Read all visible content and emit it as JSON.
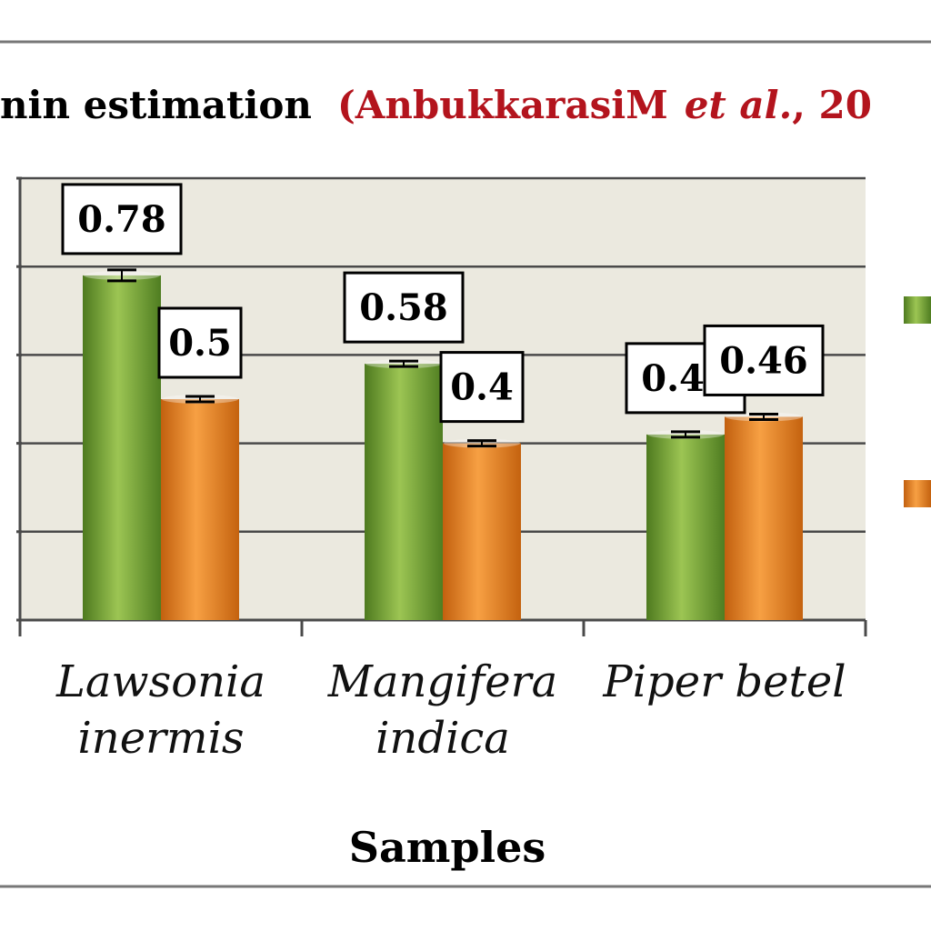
{
  "title_black": "nin estimation",
  "title_red_part1": "(AnbukkarasiM",
  "title_red_italic": "et al.",
  "title_red_part2": ", 20",
  "colors": {
    "green": "#7aa63a",
    "orange": "#e8821e",
    "plot_bg": "#ebe9df",
    "grid": "#4a4a4a",
    "title_red": "#b3141d"
  },
  "chart_data": {
    "type": "bar",
    "categories": [
      [
        "Lawsonia",
        "inermis"
      ],
      [
        "Mangifera",
        "indica"
      ],
      [
        "Piper betel"
      ]
    ],
    "series": [
      {
        "values": [
          0.78,
          0.58,
          0.42
        ],
        "color": "green"
      },
      {
        "values": [
          0.5,
          0.4,
          0.46
        ],
        "color": "orange"
      }
    ],
    "data_labels": [
      [
        "0.78",
        "0.5"
      ],
      [
        "0.58",
        "0.4"
      ],
      [
        "0.42",
        "0.46"
      ]
    ],
    "xlabel": "Samples",
    "ylim": [
      0,
      1
    ],
    "grid": true,
    "error_bars": true,
    "legend": "right, cropped"
  }
}
